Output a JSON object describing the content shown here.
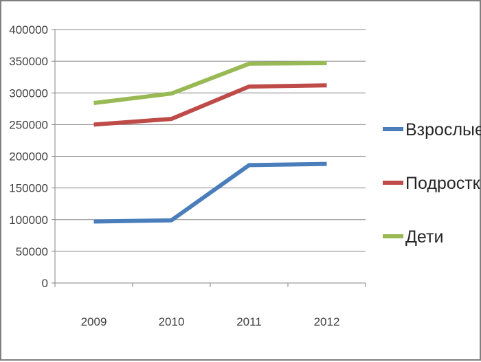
{
  "chart_data": {
    "type": "line",
    "title": "",
    "xlabel": "",
    "ylabel": "",
    "categories": [
      "2009",
      "2010",
      "2011",
      "2012"
    ],
    "ylim": [
      0,
      400000
    ],
    "yticks": [
      0,
      50000,
      100000,
      150000,
      200000,
      250000,
      300000,
      350000,
      400000
    ],
    "ytick_labels": [
      "0",
      "50000",
      "100000",
      "150000",
      "200000",
      "250000",
      "300000",
      "350000",
      "400000"
    ],
    "grid": true,
    "legend_position": "right",
    "series": [
      {
        "name": "Взрослые",
        "color": "#4a7ebb",
        "values": [
          97000,
          99000,
          186000,
          188000
        ]
      },
      {
        "name": "Подростки",
        "color": "#be4b48",
        "values": [
          250000,
          259000,
          310000,
          312000
        ]
      },
      {
        "name": "Дети",
        "color": "#98b954",
        "values": [
          284000,
          299000,
          346000,
          347000
        ]
      }
    ]
  }
}
